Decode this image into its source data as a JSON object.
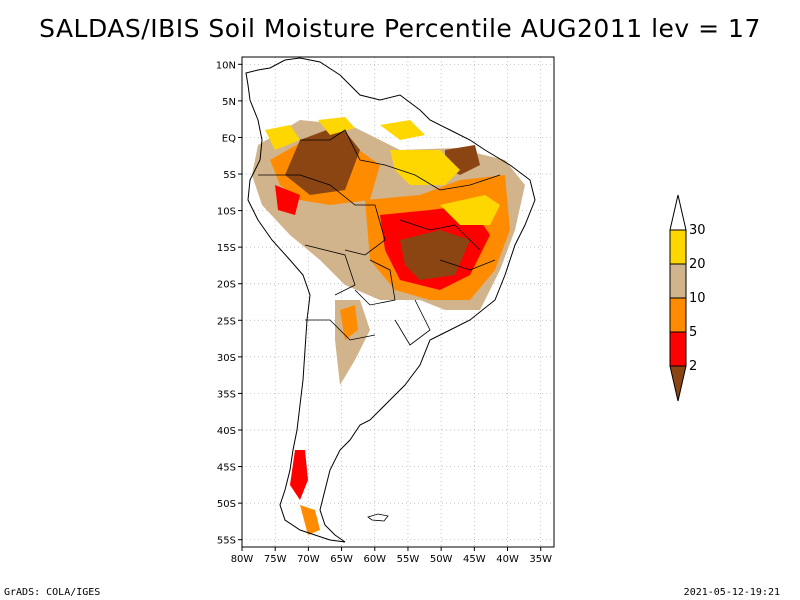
{
  "title": "SALDAS/IBIS Soil Moisture Percentile AUG2011 lev = 17",
  "footer": {
    "left": "GrADS: COLA/IGES",
    "right": "2021-05-12-19:21"
  },
  "map": {
    "lon_range": [
      -80,
      -33
    ],
    "lat_range": [
      -56,
      11
    ],
    "lat_ticks": [
      {
        "value": 10,
        "label": "10N"
      },
      {
        "value": 5,
        "label": "5N"
      },
      {
        "value": 0,
        "label": "EQ"
      },
      {
        "value": -5,
        "label": "5S"
      },
      {
        "value": -10,
        "label": "10S"
      },
      {
        "value": -15,
        "label": "15S"
      },
      {
        "value": -20,
        "label": "20S"
      },
      {
        "value": -25,
        "label": "25S"
      },
      {
        "value": -30,
        "label": "30S"
      },
      {
        "value": -35,
        "label": "35S"
      },
      {
        "value": -40,
        "label": "40S"
      },
      {
        "value": -45,
        "label": "45S"
      },
      {
        "value": -50,
        "label": "50S"
      },
      {
        "value": -55,
        "label": "55S"
      }
    ],
    "lon_ticks": [
      {
        "value": -80,
        "label": "80W"
      },
      {
        "value": -75,
        "label": "75W"
      },
      {
        "value": -70,
        "label": "70W"
      },
      {
        "value": -65,
        "label": "65W"
      },
      {
        "value": -60,
        "label": "60W"
      },
      {
        "value": -55,
        "label": "55W"
      },
      {
        "value": -50,
        "label": "50W"
      },
      {
        "value": -45,
        "label": "45W"
      },
      {
        "value": -40,
        "label": "40W"
      },
      {
        "value": -35,
        "label": "35W"
      }
    ],
    "gridlines": true
  },
  "colorbar": {
    "bins": [
      {
        "label": "2",
        "color": "#8b4513"
      },
      {
        "label": "5",
        "color": "#ff0000"
      },
      {
        "label": "10",
        "color": "#ff8c00"
      },
      {
        "label": "20",
        "color": "#d2b48c"
      },
      {
        "label": "30",
        "color": "#ffd700"
      },
      {
        "label": "",
        "color": "#ffffff"
      }
    ]
  }
}
